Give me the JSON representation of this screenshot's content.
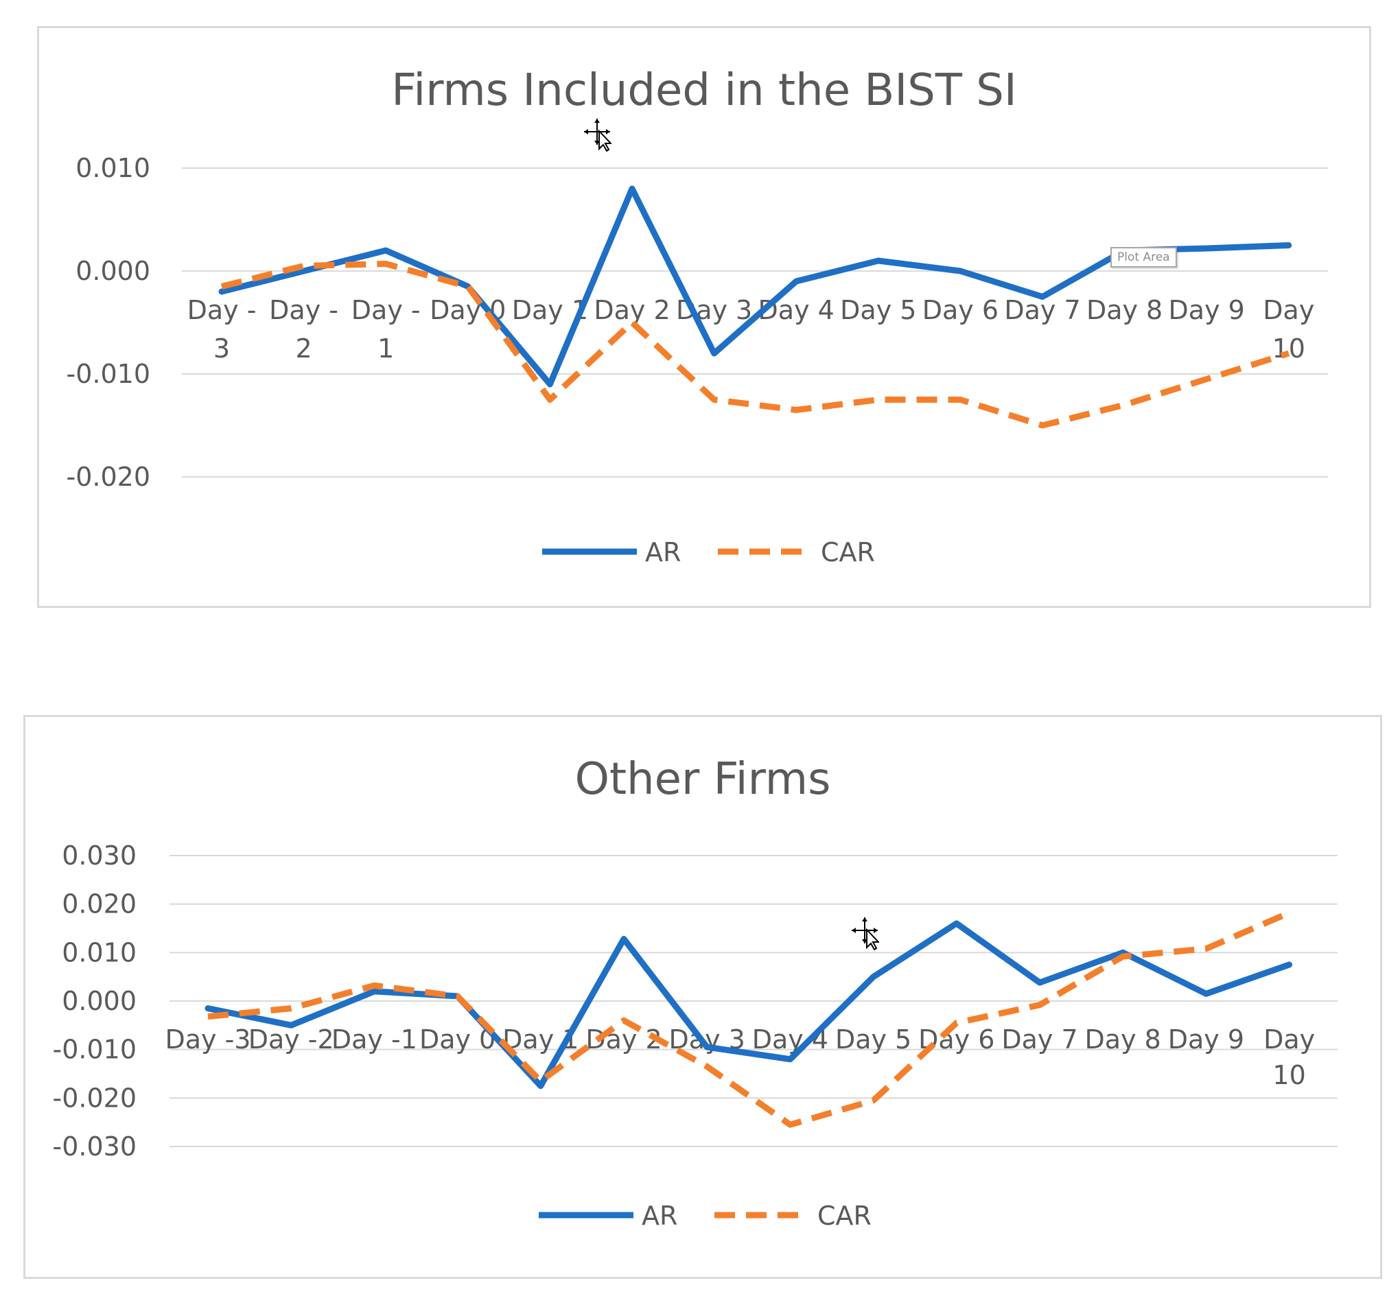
{
  "colors": {
    "ar": "#1f6fc5",
    "car": "#f47f2b",
    "grid": "#d9d9d9",
    "text": "#595959"
  },
  "chart_data": [
    {
      "type": "line",
      "title": "Firms Included in the BIST SI",
      "categories": [
        "Day -3",
        "Day -2",
        "Day -1",
        "Day 0",
        "Day 1",
        "Day 2",
        "Day 3",
        "Day 4",
        "Day 5",
        "Day 6",
        "Day 7",
        "Day 8",
        "Day 9",
        "Day 10"
      ],
      "category_labels": [
        [
          "Day -",
          "3"
        ],
        [
          "Day -",
          "2"
        ],
        [
          "Day -",
          "1"
        ],
        [
          "Day 0"
        ],
        [
          "Day 1"
        ],
        [
          "Day 2"
        ],
        [
          "Day 3"
        ],
        [
          "Day 4"
        ],
        [
          "Day 5"
        ],
        [
          "Day 6"
        ],
        [
          "Day 7"
        ],
        [
          "Day 8"
        ],
        [
          "Day 9"
        ],
        [
          "Day",
          "10"
        ]
      ],
      "yticks": [
        0.01,
        0.0,
        -0.01,
        -0.02
      ],
      "ytick_labels": [
        "0.010",
        "0.000",
        "-0.010",
        "-0.020"
      ],
      "ylim": [
        -0.02,
        0.01
      ],
      "grid": true,
      "legend": "bottom",
      "series": [
        {
          "name": "AR",
          "style": "solid",
          "values": [
            -0.002,
            0.0,
            0.002,
            -0.0015,
            -0.011,
            0.008,
            -0.008,
            -0.001,
            0.001,
            0.0,
            -0.0025,
            0.002,
            0.0022,
            0.0025
          ]
        },
        {
          "name": "CAR",
          "style": "dashed",
          "values": [
            -0.0015,
            0.0005,
            0.0007,
            -0.0015,
            -0.0125,
            -0.005,
            -0.0125,
            -0.0135,
            -0.0125,
            -0.0125,
            -0.015,
            -0.013,
            -0.0105,
            -0.008
          ]
        }
      ],
      "tooltip": "Plot Area"
    },
    {
      "type": "line",
      "title": "Other Firms",
      "categories": [
        "Day -3",
        "Day -2",
        "Day -1",
        "Day 0",
        "Day 1",
        "Day 2",
        "Day 3",
        "Day 4",
        "Day 5",
        "Day 6",
        "Day 7",
        "Day 8",
        "Day 9",
        "Day 10"
      ],
      "category_labels": [
        [
          "Day -3"
        ],
        [
          "Day -2"
        ],
        [
          "Day -1"
        ],
        [
          "Day 0"
        ],
        [
          "Day 1"
        ],
        [
          "Day 2"
        ],
        [
          "Day 3"
        ],
        [
          "Day 4"
        ],
        [
          "Day 5"
        ],
        [
          "Day 6"
        ],
        [
          "Day 7"
        ],
        [
          "Day 8"
        ],
        [
          "Day 9"
        ],
        [
          "Day",
          "10"
        ]
      ],
      "yticks": [
        0.03,
        0.02,
        0.01,
        0.0,
        -0.01,
        -0.02,
        -0.03
      ],
      "ytick_labels": [
        "0.030",
        "0.020",
        "0.010",
        "0.000",
        "-0.010",
        "-0.020",
        "-0.030"
      ],
      "ylim": [
        -0.03,
        0.03
      ],
      "grid": true,
      "legend": "bottom",
      "series": [
        {
          "name": "AR",
          "style": "solid",
          "values": [
            -0.0015,
            -0.005,
            0.002,
            0.001,
            -0.0175,
            0.0128,
            -0.0095,
            -0.012,
            0.005,
            0.016,
            0.0038,
            0.01,
            0.0015,
            0.0075
          ]
        },
        {
          "name": "CAR",
          "style": "dashed",
          "values": [
            -0.0032,
            -0.0015,
            0.0032,
            0.001,
            -0.0165,
            -0.004,
            -0.0135,
            -0.0255,
            -0.0205,
            -0.0045,
            -0.0008,
            0.0092,
            0.0108,
            0.0182
          ]
        }
      ]
    }
  ]
}
